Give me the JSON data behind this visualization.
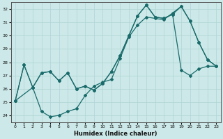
{
  "xlabel": "Humidex (Indice chaleur)",
  "bg_color": "#cce8e8",
  "grid_color": "#b0d4d4",
  "line_color": "#1a6b6b",
  "xlim": [
    -0.5,
    23.5
  ],
  "ylim": [
    23.5,
    32.5
  ],
  "xticks": [
    0,
    1,
    2,
    3,
    4,
    5,
    6,
    7,
    8,
    9,
    10,
    11,
    12,
    13,
    14,
    15,
    16,
    17,
    18,
    19,
    20,
    21,
    22,
    23
  ],
  "yticks": [
    24,
    25,
    26,
    27,
    28,
    29,
    30,
    31,
    32
  ],
  "line1_x": [
    0,
    1,
    2,
    3,
    4,
    5,
    6,
    7,
    8,
    9,
    10,
    11,
    12,
    13,
    14,
    15,
    16,
    17,
    18,
    19,
    20,
    21,
    22,
    23
  ],
  "line1_y": [
    25.1,
    27.8,
    26.1,
    27.2,
    27.3,
    26.6,
    27.2,
    26.0,
    26.2,
    25.9,
    26.4,
    27.3,
    28.5,
    30.0,
    31.5,
    32.3,
    31.4,
    31.3,
    31.6,
    32.2,
    31.1,
    29.5,
    28.2,
    27.7
  ],
  "line2_x": [
    0,
    1,
    2,
    3,
    4,
    5,
    6,
    7,
    8,
    9,
    10,
    11,
    12,
    13,
    14,
    15,
    16,
    17,
    18,
    19,
    20,
    21,
    22,
    23
  ],
  "line2_y": [
    25.1,
    27.8,
    26.1,
    24.3,
    23.9,
    24.0,
    24.3,
    24.5,
    25.5,
    26.2,
    26.5,
    26.7,
    28.3,
    29.9,
    30.8,
    31.4,
    31.3,
    31.2,
    31.7,
    32.2,
    31.1,
    29.5,
    28.2,
    27.7
  ],
  "line3_x": [
    0,
    2,
    3,
    4,
    5,
    6,
    7,
    8,
    9,
    10,
    11,
    12,
    13,
    14,
    15,
    16,
    17,
    18,
    19,
    20,
    21,
    22,
    23
  ],
  "line3_y": [
    25.1,
    26.1,
    27.2,
    27.3,
    26.6,
    27.2,
    26.0,
    26.2,
    25.9,
    26.4,
    27.3,
    28.5,
    30.0,
    31.5,
    32.3,
    31.4,
    31.3,
    31.6,
    27.4,
    27.0,
    27.5,
    27.7,
    27.7
  ]
}
